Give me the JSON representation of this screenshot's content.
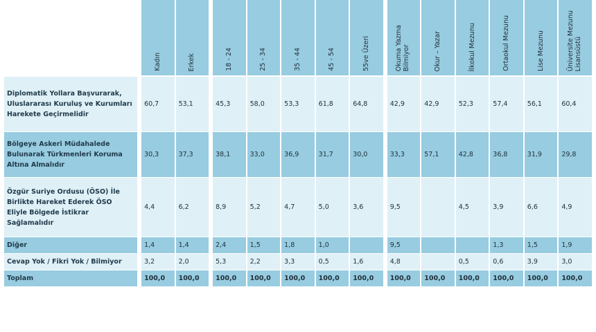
{
  "table": {
    "columns": [
      {
        "label": "Kadın",
        "group": 1
      },
      {
        "label": "Erkek",
        "group": 1
      },
      {
        "label": "18 - 24",
        "group": 2
      },
      {
        "label": "25 - 34",
        "group": 2
      },
      {
        "label": "35 - 44",
        "group": 2
      },
      {
        "label": "45 - 54",
        "group": 2
      },
      {
        "label": "55ve Üzeri",
        "group": 2
      },
      {
        "label": "Okuma Yazma\nBilmiyor",
        "group": 3
      },
      {
        "label": "Okur – Yazar",
        "group": 3
      },
      {
        "label": "İlkokul Mezunu",
        "group": 3
      },
      {
        "label": "Ortaokul Mezunu",
        "group": 3
      },
      {
        "label": "Lise Mezunu",
        "group": 3
      },
      {
        "label": "Üniversite Mezunu\nLisansüstü",
        "group": 3
      }
    ],
    "rows": [
      {
        "label": "Diplomatik Yollara Başvurarak, Uluslararası Kuruluş ve Kurumları Harekete Geçirmelidir",
        "style": "light",
        "height": "h1",
        "values": [
          "60,7",
          "53,1",
          "45,3",
          "58,0",
          "53,3",
          "61,8",
          "64,8",
          "42,9",
          "42,9",
          "52,3",
          "57,4",
          "56,1",
          "60,4"
        ]
      },
      {
        "label": "Bölgeye Askeri Müdahalede Bulunarak Türkmenleri Koruma Altına Almalıdır",
        "style": "dark",
        "height": "h2",
        "values": [
          "30,3",
          "37,3",
          "38,1",
          "33,0",
          "36,9",
          "31,7",
          "30,0",
          "33,3",
          "57,1",
          "42,8",
          "36,8",
          "31,9",
          "29,8"
        ]
      },
      {
        "label": "Özgür Suriye Ordusu (ÖSO) İle Birlikte Hareket Ederek ÖSO Eliyle Bölgede İstikrar Sağlamalıdır",
        "style": "light",
        "height": "h3",
        "values": [
          "4,4",
          "6,2",
          "8,9",
          "5,2",
          "4,7",
          "5,0",
          "3,6",
          "9,5",
          "",
          "4,5",
          "3,9",
          "6,6",
          "4,9"
        ]
      },
      {
        "label": "Diğer",
        "style": "dark",
        "height": "h4",
        "values": [
          "1,4",
          "1,4",
          "2,4",
          "1,5",
          "1,8",
          "1,0",
          "",
          "9,5",
          "",
          "",
          "1,3",
          "1,5",
          "1,9"
        ]
      },
      {
        "label": "Cevap Yok / Fikri Yok / Bilmiyor",
        "style": "light",
        "height": "h4",
        "values": [
          "3,2",
          "2,0",
          "5,3",
          "2,2",
          "3,3",
          "0,5",
          "1,6",
          "4,8",
          "",
          "0,5",
          "0,6",
          "3,9",
          "3,0"
        ]
      },
      {
        "label": "Toplam",
        "style": "dark",
        "height": "h4",
        "total": true,
        "values": [
          "100,0",
          "100,0",
          "100,0",
          "100,0",
          "100,0",
          "100,0",
          "100,0",
          "100,0",
          "100,0",
          "100,0",
          "100,0",
          "100,0",
          "100,0"
        ]
      }
    ]
  },
  "colors": {
    "header": "#98cce0",
    "row_light": "#dff0f7",
    "row_dark": "#98cce0",
    "text": "#1f2f3a"
  }
}
